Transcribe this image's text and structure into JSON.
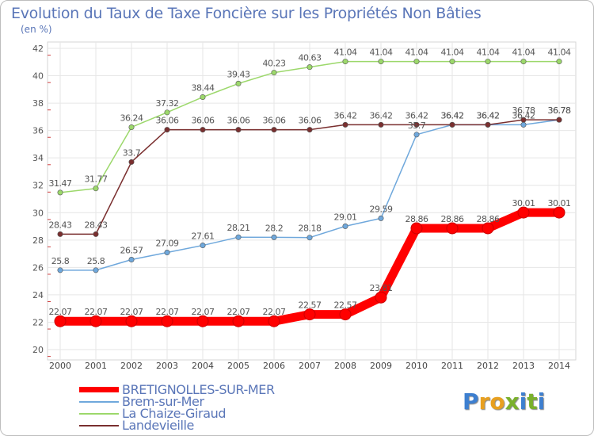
{
  "title": "Evolution du Taux de Taxe Foncière sur les Propriétés Non Bâties",
  "unit_label": "(en %)",
  "logo": {
    "text": "Proxiti",
    "letters": [
      "P",
      "r",
      "o",
      "x",
      "i",
      "t",
      "i"
    ],
    "colors": [
      "#3d7fd0",
      "#e8a020",
      "#e8a020",
      "#7ab02c",
      "#3d7fd0",
      "#7ab02c",
      "#3d7fd0"
    ]
  },
  "chart_data": {
    "type": "line",
    "x": [
      2000,
      2001,
      2002,
      2003,
      2004,
      2005,
      2006,
      2007,
      2008,
      2009,
      2010,
      2011,
      2012,
      2013,
      2014
    ],
    "ylim": [
      20,
      42
    ],
    "yticks": [
      20,
      22,
      24,
      26,
      28,
      30,
      32,
      34,
      36,
      38,
      40,
      42
    ],
    "grid": true,
    "legend_position": "bottom-left",
    "series": [
      {
        "name": "BRETIGNOLLES-SUR-MER",
        "color": "#ff0000",
        "values": [
          22.07,
          22.07,
          22.07,
          22.07,
          22.07,
          22.07,
          22.07,
          22.57,
          22.57,
          23.81,
          28.86,
          28.86,
          28.86,
          30.01,
          30.01
        ],
        "labels": [
          "22.07",
          "22.07",
          "22.07",
          "22.07",
          "22.07",
          "22.07",
          "22.07",
          "22.57",
          "22.57",
          "23.81",
          "28.86",
          "28.86",
          "28.86",
          "30.01",
          "30.01"
        ]
      },
      {
        "name": "Brem-sur-Mer",
        "color": "#6fa8dc",
        "values": [
          25.8,
          25.8,
          26.57,
          27.09,
          27.61,
          28.21,
          28.2,
          28.18,
          29.01,
          29.59,
          35.7,
          36.42,
          36.42,
          36.42,
          36.78
        ],
        "labels": [
          "25.8",
          "25.8",
          "26.57",
          "27.09",
          "27.61",
          "28.21",
          "28.2",
          "28.18",
          "29.01",
          "29.59",
          "35.7",
          "36.42",
          "36.42",
          "36.42",
          "36.78"
        ]
      },
      {
        "name": "La Chaize-Giraud",
        "color": "#9cd86b",
        "values": [
          31.47,
          31.77,
          36.24,
          37.32,
          38.44,
          39.43,
          40.23,
          40.63,
          41.04,
          41.04,
          41.04,
          41.04,
          41.04,
          41.04,
          41.04
        ],
        "labels": [
          "31.47",
          "31.77",
          "36.24",
          "37.32",
          "38.44",
          "39.43",
          "40.23",
          "40.63",
          "41.04",
          "41.04",
          "41.04",
          "41.04",
          "41.04",
          "41.04",
          "41.04"
        ]
      },
      {
        "name": "Landevieille",
        "color": "#7a2f2f",
        "values": [
          28.43,
          28.43,
          33.7,
          36.06,
          36.06,
          36.06,
          36.06,
          36.06,
          36.42,
          36.42,
          36.42,
          36.42,
          36.42,
          36.78,
          36.78
        ],
        "labels": [
          "28.43",
          "28.43",
          "33.7",
          "36.06",
          "36.06",
          "36.06",
          "36.06",
          "36.06",
          "36.42",
          "36.42",
          "36.42",
          "36.42",
          "36.42",
          "36.78",
          "36.78"
        ]
      }
    ]
  }
}
